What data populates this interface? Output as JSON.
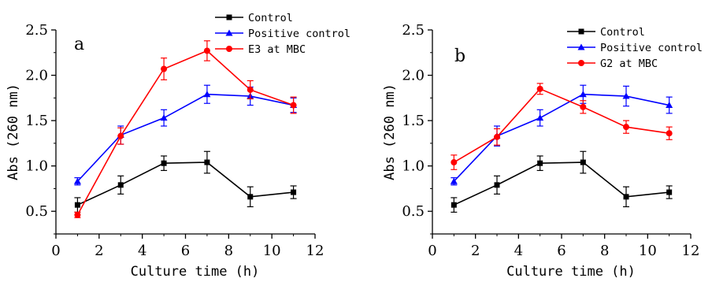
{
  "chart_data": [
    {
      "type": "line",
      "panel_label": "a",
      "xlabel": "Culture time (h)",
      "ylabel": "Abs (260 nm)",
      "xlim": [
        0,
        12
      ],
      "ylim": [
        0.25,
        2.5
      ],
      "xticks": [
        "0",
        "2",
        "4",
        "6",
        "8",
        "10",
        "12"
      ],
      "yticks": [
        "0.5",
        "1.0",
        "1.5",
        "2.0",
        "2.5"
      ],
      "legend_position": "top-right",
      "grid": false,
      "x": [
        1,
        3,
        5,
        7,
        9,
        11
      ],
      "series": [
        {
          "name": "Control",
          "color": "#000000",
          "marker": "square",
          "values": [
            0.57,
            0.79,
            1.03,
            1.04,
            0.66,
            0.71
          ],
          "errors": [
            0.08,
            0.1,
            0.08,
            0.12,
            0.11,
            0.07
          ]
        },
        {
          "name": "Positive control",
          "color": "#0000ff",
          "marker": "triangle",
          "values": [
            0.83,
            1.34,
            1.53,
            1.79,
            1.77,
            1.67
          ],
          "errors": [
            0.04,
            0.1,
            0.09,
            0.1,
            0.1,
            0.08
          ]
        },
        {
          "name": "E3 at MBC",
          "color": "#ff0000",
          "marker": "circle",
          "values": [
            0.46,
            1.33,
            2.07,
            2.27,
            1.84,
            1.67
          ],
          "errors": [
            0.03,
            0.09,
            0.12,
            0.11,
            0.1,
            0.09
          ]
        }
      ]
    },
    {
      "type": "line",
      "panel_label": "b",
      "xlabel": "Culture time (h)",
      "ylabel": "Abs (260 nm)",
      "xlim": [
        0,
        12
      ],
      "ylim": [
        0.25,
        2.5
      ],
      "xticks": [
        "0",
        "2",
        "4",
        "6",
        "8",
        "10",
        "12"
      ],
      "yticks": [
        "0.5",
        "1.0",
        "1.5",
        "2.0",
        "2.5"
      ],
      "legend_position": "top-right",
      "grid": false,
      "x": [
        1,
        3,
        5,
        7,
        9,
        11
      ],
      "series": [
        {
          "name": "Control",
          "color": "#000000",
          "marker": "square",
          "values": [
            0.57,
            0.79,
            1.03,
            1.04,
            0.66,
            0.71
          ],
          "errors": [
            0.08,
            0.1,
            0.08,
            0.12,
            0.11,
            0.07
          ]
        },
        {
          "name": "Positive control",
          "color": "#0000ff",
          "marker": "triangle",
          "values": [
            0.83,
            1.33,
            1.53,
            1.79,
            1.77,
            1.67
          ],
          "errors": [
            0.04,
            0.11,
            0.09,
            0.1,
            0.11,
            0.09
          ]
        },
        {
          "name": "G2 at MBC",
          "color": "#ff0000",
          "marker": "circle",
          "values": [
            1.04,
            1.32,
            1.85,
            1.65,
            1.43,
            1.36
          ],
          "errors": [
            0.08,
            0.09,
            0.06,
            0.07,
            0.07,
            0.07
          ]
        }
      ]
    }
  ]
}
